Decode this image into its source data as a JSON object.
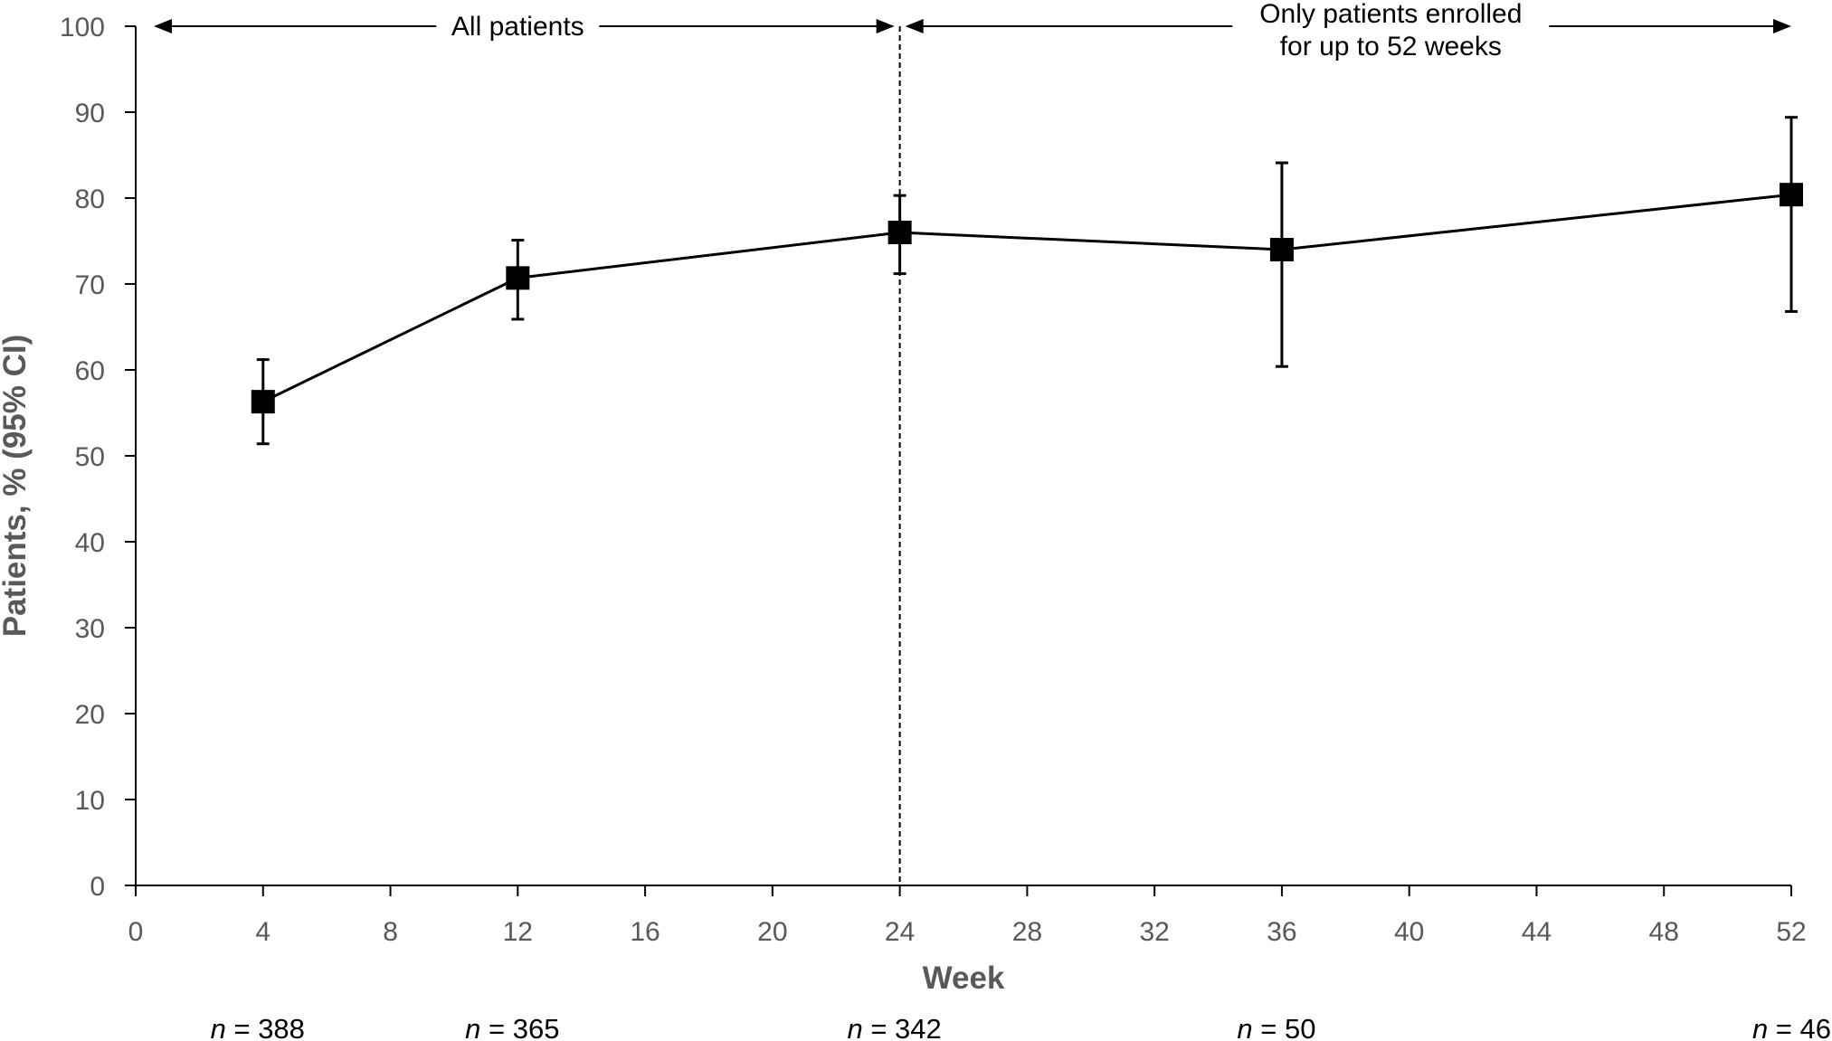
{
  "chart_data": {
    "type": "line",
    "xlabel": "Week",
    "ylabel": "Patients, % (95% CI)",
    "xlim": [
      0,
      52
    ],
    "ylim": [
      0,
      100
    ],
    "x_ticks": [
      0,
      4,
      8,
      12,
      16,
      20,
      24,
      28,
      32,
      36,
      40,
      44,
      48,
      52
    ],
    "y_ticks": [
      0,
      10,
      20,
      30,
      40,
      50,
      60,
      70,
      80,
      90,
      100
    ],
    "grid": false,
    "legend": "none",
    "series": [
      {
        "marker": "square",
        "color": "#000000",
        "points": [
          {
            "x": 4,
            "y": 56.3,
            "ci_low": 51.4,
            "ci_high": 61.2
          },
          {
            "x": 12,
            "y": 70.7,
            "ci_low": 65.9,
            "ci_high": 75.1
          },
          {
            "x": 24,
            "y": 76.0,
            "ci_low": 71.2,
            "ci_high": 80.3
          },
          {
            "x": 36,
            "y": 74.0,
            "ci_low": 60.4,
            "ci_high": 84.1
          },
          {
            "x": 52,
            "y": 80.4,
            "ci_low": 66.8,
            "ci_high": 89.4
          }
        ]
      }
    ],
    "divider_x": 24,
    "annotations": [
      {
        "text": "All patients",
        "from": 0,
        "to": 24
      },
      {
        "text_lines": [
          "Only patients enrolled",
          "for up to 52 weeks"
        ],
        "from": 24,
        "to": 52
      }
    ],
    "n_labels": [
      {
        "x": 4,
        "prefix": "n",
        "text": " = 388"
      },
      {
        "x": 12,
        "prefix": "n",
        "text": " = 365"
      },
      {
        "x": 24,
        "prefix": "n",
        "text": " = 342"
      },
      {
        "x": 36,
        "prefix": "n",
        "text": " = 50"
      },
      {
        "x": 52,
        "prefix": "n",
        "text": " = 46"
      }
    ]
  }
}
